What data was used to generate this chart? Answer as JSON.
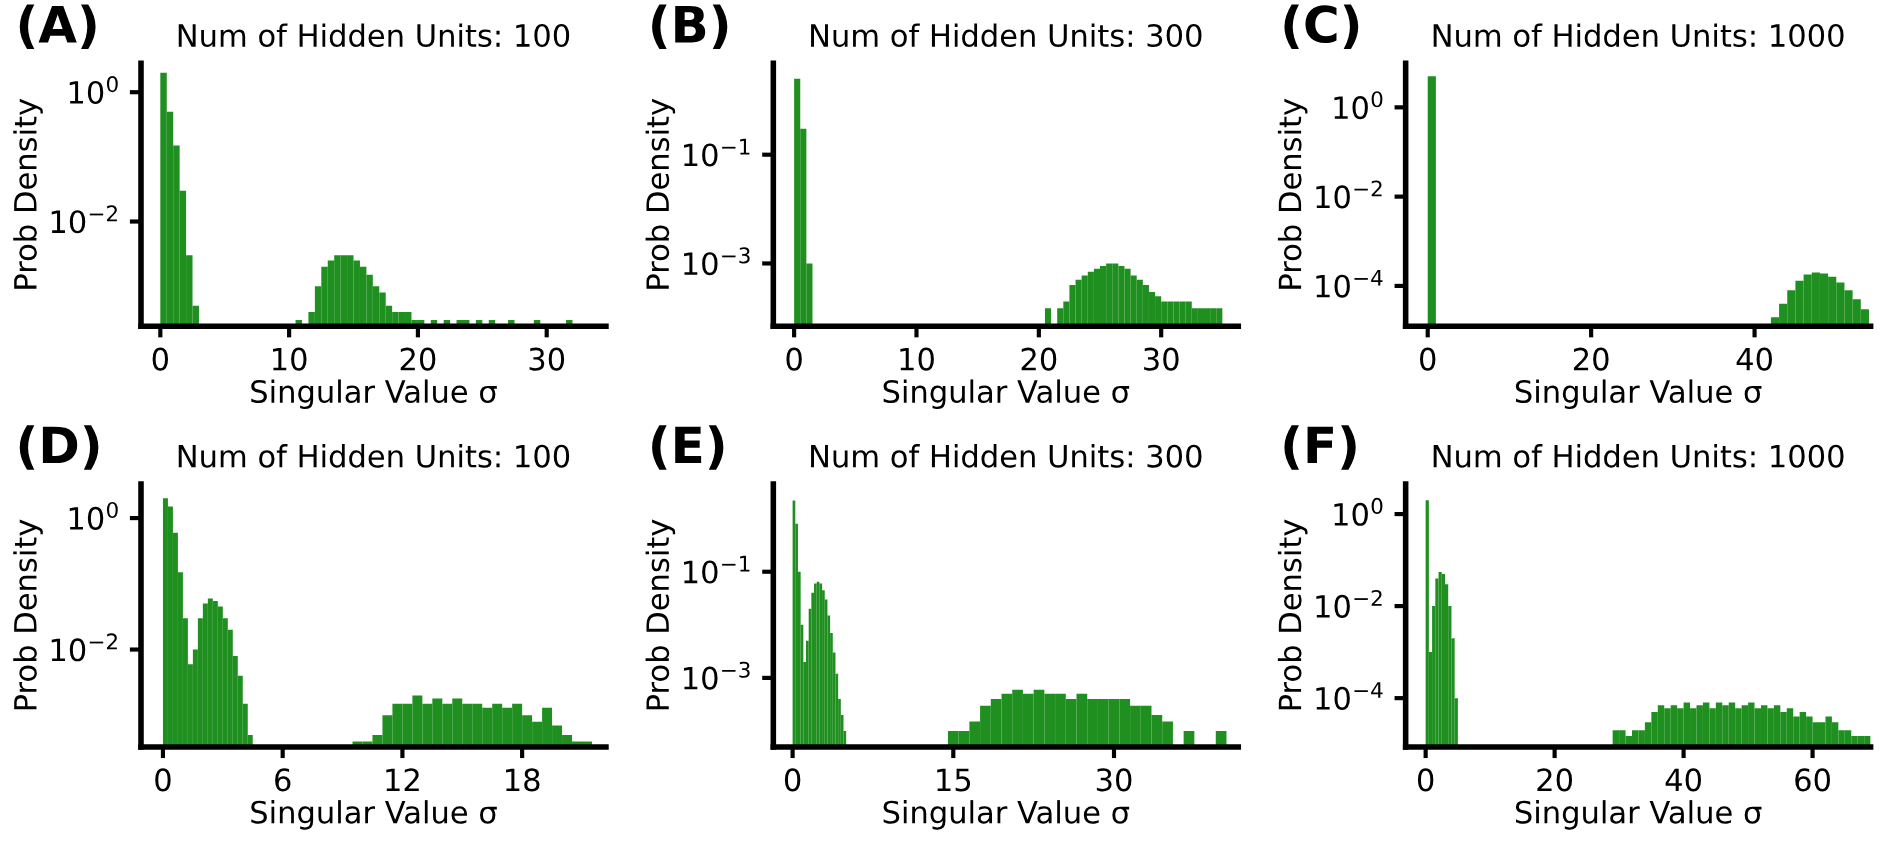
{
  "chart_data": [
    {
      "type": "histogram",
      "title": "Num of Hidden Units: 100",
      "xlabel": "Singular Value σ",
      "ylabel": "Prob Density",
      "annotations": [
        "(A)"
      ],
      "color": "#1f8f1f",
      "log": true,
      "xlim": [
        -1.5,
        34.6
      ],
      "ylim": [
        0.00024,
        2.8
      ],
      "xticks": [
        0,
        10,
        20,
        30
      ],
      "yticks": [
        {
          "value": 1,
          "label": "10$^{0}$"
        },
        {
          "value": 0.01,
          "label": "10$^{−2}$"
        }
      ],
      "bins": [
        0,
        0.5,
        1,
        1.5,
        2,
        2.5,
        3,
        3.5,
        4,
        4.5,
        5,
        5.5,
        6,
        6.5,
        7,
        7.5,
        8,
        8.5,
        9,
        9.5,
        10,
        10.5,
        11,
        11.5,
        12,
        12.5,
        13,
        13.5,
        14,
        14.5,
        15,
        15.5,
        16,
        16.5,
        17,
        17.5,
        18,
        18.5,
        19,
        19.5,
        20,
        20.5,
        21,
        21.5,
        22,
        22.5,
        23,
        23.5,
        24,
        24.5,
        25,
        25.5,
        26,
        26.5,
        27,
        27.5,
        28,
        28.5,
        29,
        29.5,
        30,
        30.5,
        31,
        31.5,
        32
      ],
      "values": [
        2.0,
        0.5,
        0.15,
        0.03,
        0.003,
        0.0005,
        null,
        null,
        null,
        null,
        null,
        null,
        null,
        null,
        null,
        null,
        null,
        null,
        null,
        null,
        null,
        0.0003,
        null,
        0.0004,
        0.001,
        0.002,
        0.0025,
        0.003,
        0.003,
        0.003,
        0.0025,
        0.002,
        0.0015,
        0.001,
        0.0008,
        0.0005,
        0.0004,
        0.0004,
        0.0004,
        0.0003,
        0.0003,
        null,
        0.0003,
        null,
        0.0003,
        null,
        0.0003,
        0.0003,
        null,
        0.0003,
        null,
        0.0003,
        null,
        null,
        0.0003,
        null,
        null,
        null,
        0.0003,
        null,
        null,
        null,
        null,
        0.0003
      ]
    },
    {
      "type": "histogram",
      "title": "Num of Hidden Units: 300",
      "xlabel": "Singular Value σ",
      "ylabel": "Prob Density",
      "annotations": [
        "(B)"
      ],
      "color": "#1f8f1f",
      "log": true,
      "xlim": [
        -1.7,
        36.3
      ],
      "ylim": [
        7e-05,
        4.8
      ],
      "xticks": [
        0,
        10,
        20,
        30
      ],
      "yticks": [
        {
          "value": 0.1,
          "label": "10$^{−1}$"
        },
        {
          "value": 0.001,
          "label": "10$^{−3}$"
        }
      ],
      "bins": [
        0,
        0.5,
        1,
        1.5,
        2,
        2.5,
        3,
        3.5,
        4,
        4.5,
        5,
        5.5,
        6,
        6.5,
        7,
        7.5,
        8,
        8.5,
        9,
        9.5,
        10,
        10.5,
        11,
        11.5,
        12,
        12.5,
        13,
        13.5,
        14,
        14.5,
        15,
        15.5,
        16,
        16.5,
        17,
        17.5,
        18,
        18.5,
        19,
        19.5,
        20,
        20.5,
        21,
        21.5,
        22,
        22.5,
        23,
        23.5,
        24,
        24.5,
        25,
        25.5,
        26,
        26.5,
        27,
        27.5,
        28,
        28.5,
        29,
        29.5,
        30,
        30.5,
        31,
        31.5,
        32,
        32.5,
        33,
        33.5,
        34,
        34.5,
        35
      ],
      "values": [
        2.5,
        0.3,
        0.001,
        null,
        null,
        null,
        null,
        null,
        null,
        null,
        null,
        null,
        null,
        null,
        null,
        null,
        null,
        null,
        null,
        null,
        null,
        null,
        null,
        null,
        null,
        null,
        null,
        null,
        null,
        null,
        null,
        null,
        null,
        null,
        null,
        null,
        null,
        null,
        null,
        null,
        null,
        0.00015,
        null,
        0.00015,
        0.0002,
        0.0004,
        0.0005,
        0.0006,
        0.0007,
        0.0008,
        0.0009,
        0.001,
        0.001,
        0.0009,
        0.0008,
        0.0006,
        0.0005,
        0.0004,
        0.0003,
        0.00025,
        0.0002,
        0.0002,
        0.0002,
        0.0002,
        0.0002,
        0.00015,
        0.00015,
        0.00015,
        0.00015,
        0.00015
      ]
    },
    {
      "type": "histogram",
      "title": "Num of Hidden Units: 1000",
      "xlabel": "Singular Value σ",
      "ylabel": "Prob Density",
      "annotations": [
        "(C)"
      ],
      "color": "#1f8f1f",
      "log": true,
      "xlim": [
        -2.7,
        54.2
      ],
      "ylim": [
        1.25e-05,
        9.7
      ],
      "xticks": [
        0,
        20,
        40
      ],
      "yticks": [
        {
          "value": 1,
          "label": "10$^{0}$"
        },
        {
          "value": 0.01,
          "label": "10$^{−2}$"
        },
        {
          "value": 0.0001,
          "label": "10$^{−4}$"
        }
      ],
      "bins": [
        0,
        1,
        2,
        3,
        4,
        5,
        6,
        7,
        8,
        9,
        10,
        11,
        12,
        13,
        14,
        15,
        16,
        17,
        18,
        19,
        20,
        21,
        22,
        23,
        24,
        25,
        26,
        27,
        28,
        29,
        30,
        31,
        32,
        33,
        34,
        35,
        36,
        37,
        38,
        39,
        40,
        41,
        42,
        43,
        44,
        45,
        46,
        47,
        48,
        49,
        50,
        51,
        52,
        53,
        54
      ],
      "values": [
        5.0,
        null,
        null,
        null,
        null,
        null,
        null,
        null,
        null,
        null,
        null,
        null,
        null,
        null,
        null,
        null,
        null,
        null,
        null,
        null,
        null,
        null,
        null,
        null,
        null,
        null,
        null,
        null,
        null,
        null,
        null,
        null,
        null,
        null,
        null,
        null,
        null,
        null,
        null,
        null,
        null,
        null,
        2e-05,
        4e-05,
        8e-05,
        0.00013,
        0.00018,
        0.0002,
        0.00019,
        0.00016,
        0.00012,
        8e-05,
        5e-05,
        3e-05
      ]
    },
    {
      "type": "histogram",
      "title": "Num of Hidden Units: 100",
      "xlabel": "Singular Value σ",
      "ylabel": "Prob Density",
      "annotations": [
        "(D)"
      ],
      "color": "#1f8f1f",
      "log": true,
      "xlim": [
        -1.1,
        22.2
      ],
      "ylim": [
        0.00033,
        3.3
      ],
      "xticks": [
        0,
        6,
        12,
        18
      ],
      "yticks": [
        {
          "value": 1,
          "label": "10$^{0}$"
        },
        {
          "value": 0.01,
          "label": "10$^{−2}$"
        }
      ],
      "bins": [
        0,
        0.25,
        0.5,
        0.75,
        1,
        1.25,
        1.5,
        1.75,
        2,
        2.25,
        2.5,
        2.75,
        3,
        3.25,
        3.5,
        3.75,
        4,
        4.25,
        4.5,
        4.75,
        9.5,
        10,
        10.5,
        11,
        11.5,
        12,
        12.5,
        13,
        13.5,
        14,
        14.5,
        15,
        15.5,
        16,
        16.5,
        17,
        17.5,
        18,
        18.5,
        19,
        19.5,
        20,
        20.5,
        21,
        21.5
      ],
      "values": [
        2.0,
        1.5,
        0.6,
        0.15,
        0.03,
        0.006,
        0.01,
        0.03,
        0.05,
        0.06,
        0.055,
        0.045,
        0.03,
        0.02,
        0.008,
        0.004,
        0.0015,
        0.0005,
        0.00035,
        null,
        0.0004,
        0.0004,
        0.0005,
        0.001,
        0.0015,
        0.0015,
        0.002,
        0.0015,
        0.0018,
        0.0015,
        0.0018,
        0.0015,
        0.0015,
        0.0013,
        0.0015,
        0.0013,
        0.0015,
        0.001,
        0.0008,
        0.0013,
        0.0007,
        0.0005,
        0.0004,
        0.0004
      ]
    },
    {
      "type": "histogram",
      "title": "Num of Hidden Units: 300",
      "xlabel": "Singular Value σ",
      "ylabel": "Prob Density",
      "annotations": [
        "(E)"
      ],
      "color": "#1f8f1f",
      "log": true,
      "xlim": [
        -1.8,
        41.6
      ],
      "ylim": [
        5e-05,
        4.5
      ],
      "xticks": [
        0,
        15,
        30
      ],
      "yticks": [
        {
          "value": 0.1,
          "label": "10$^{−1}$"
        },
        {
          "value": 0.001,
          "label": "10$^{−3}$"
        }
      ],
      "bins": [
        0,
        0.25,
        0.5,
        0.75,
        1,
        1.25,
        1.5,
        1.75,
        2,
        2.25,
        2.5,
        2.75,
        3,
        3.25,
        3.5,
        3.75,
        4,
        4.25,
        4.5,
        4.75,
        5,
        14.5,
        15.5,
        16.5,
        17.5,
        18.5,
        19.5,
        20.5,
        21.5,
        22.5,
        23.5,
        24.5,
        25.5,
        26.5,
        27.5,
        28.5,
        29.5,
        30.5,
        31.5,
        32.5,
        33.5,
        34.5,
        35.5,
        36.5,
        37.5,
        39.5,
        40.5
      ],
      "values": [
        2.2,
        0.8,
        0.1,
        0.01,
        0.002,
        0.005,
        0.02,
        0.04,
        0.06,
        0.065,
        0.06,
        0.045,
        0.03,
        0.015,
        0.007,
        0.003,
        0.0012,
        0.0004,
        0.0002,
        0.0001,
        null,
        0.0001,
        0.0001,
        0.00015,
        0.0003,
        0.0004,
        0.0005,
        0.0006,
        0.0005,
        0.0006,
        0.0005,
        0.0005,
        0.0004,
        0.0005,
        0.0004,
        0.0004,
        0.0004,
        0.0004,
        0.0003,
        0.0003,
        0.0002,
        0.00015,
        null,
        0.0001,
        null,
        0.0001
      ]
    },
    {
      "type": "histogram",
      "title": "Num of Hidden Units: 1000",
      "xlabel": "Singular Value σ",
      "ylabel": "Prob Density",
      "annotations": [
        "(F)"
      ],
      "color": "#1f8f1f",
      "log": true,
      "xlim": [
        -3.1,
        69
      ],
      "ylim": [
        8.7e-06,
        4.5
      ],
      "xticks": [
        0,
        20,
        40,
        60
      ],
      "yticks": [
        {
          "value": 1,
          "label": "10$^{0}$"
        },
        {
          "value": 0.01,
          "label": "10$^{−2}$"
        },
        {
          "value": 0.0001,
          "label": "10$^{−4}$"
        }
      ],
      "bins": [
        0,
        0.5,
        1,
        1.5,
        2,
        2.5,
        3,
        3.5,
        4,
        4.5,
        5,
        29,
        30,
        31,
        32,
        33,
        34,
        35,
        36,
        37,
        38,
        39,
        40,
        41,
        42,
        43,
        44,
        45,
        46,
        47,
        48,
        49,
        50,
        51,
        52,
        53,
        54,
        55,
        56,
        57,
        58,
        59,
        60,
        61,
        62,
        63,
        64,
        65,
        66,
        67,
        68,
        69
      ],
      "values": [
        2.0,
        0.001,
        0.01,
        0.04,
        0.055,
        0.05,
        0.03,
        0.01,
        0.002,
        0.0001,
        null,
        2e-05,
        2e-05,
        1.5e-05,
        2e-05,
        2e-05,
        3e-05,
        5e-05,
        7e-05,
        6e-05,
        7e-05,
        6e-05,
        8e-05,
        6e-05,
        7e-05,
        8e-05,
        6e-05,
        8e-05,
        7e-05,
        8e-05,
        6e-05,
        7e-05,
        8e-05,
        6e-05,
        7e-05,
        6e-05,
        7e-05,
        5e-05,
        6e-05,
        4e-05,
        5e-05,
        4e-05,
        3e-05,
        3e-05,
        4e-05,
        3e-05,
        2e-05,
        2e-05,
        1.5e-05,
        1.5e-05,
        1.5e-05
      ]
    }
  ]
}
